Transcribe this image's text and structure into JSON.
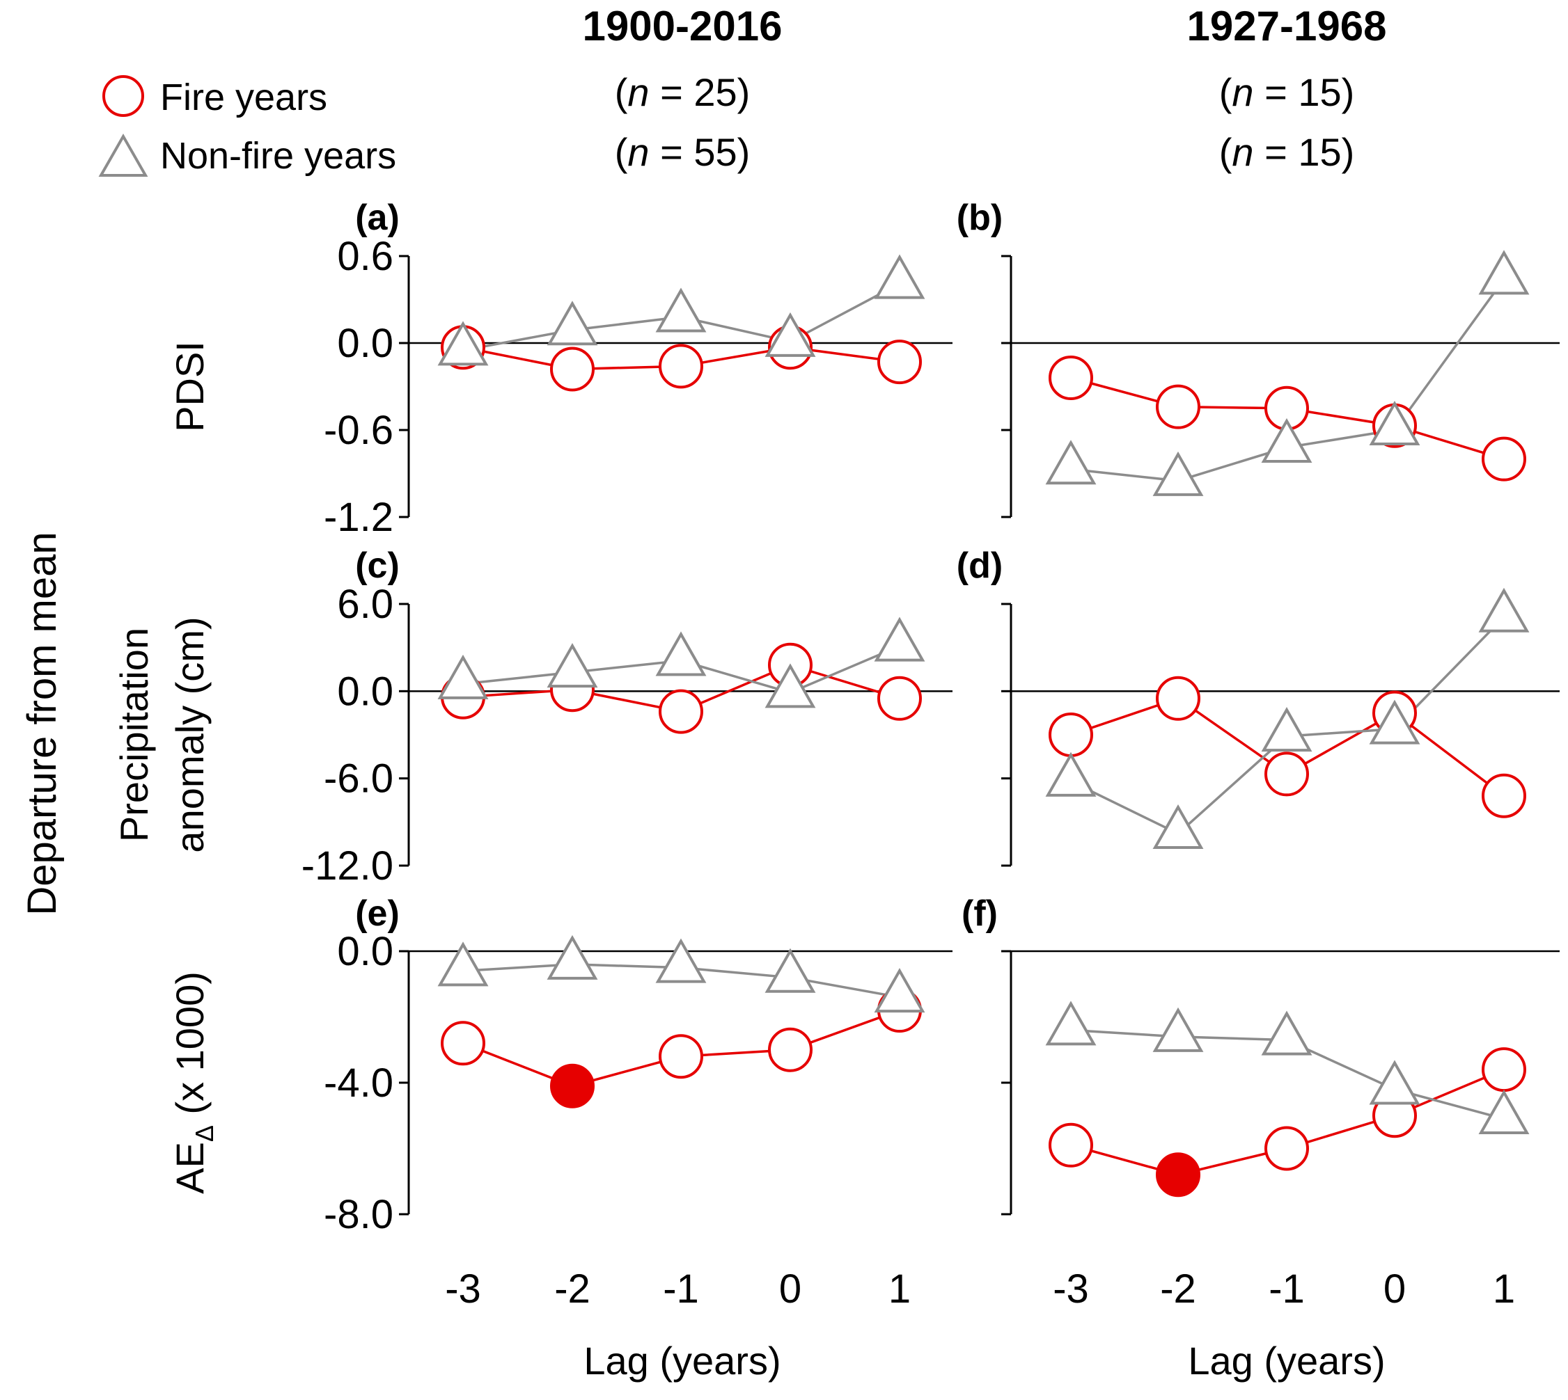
{
  "chart_data": {
    "type": "line",
    "columns": [
      {
        "title": "1900-2016",
        "n_fire": "25",
        "n_nonfire": "55"
      },
      {
        "title": "1927-1968",
        "n_fire": "15",
        "n_nonfire": "15"
      }
    ],
    "legend": {
      "fire": "Fire years",
      "nonfire": "Non-fire years"
    },
    "outer_ylabel": "Departure from mean",
    "xlabel": "Lag (years)",
    "x": [
      -3,
      -2,
      -1,
      0,
      1
    ],
    "x_tick_labels": [
      "-3",
      "-2",
      "-1",
      "0",
      "1"
    ],
    "colors": {
      "fire": "#e60000",
      "nonfire": "#8c8c8c",
      "axis": "#000000"
    },
    "rows": [
      {
        "ylabel": [
          "PDSI"
        ],
        "ylim": [
          -1.2,
          0.6
        ],
        "yticks": [
          0.6,
          0.0,
          -0.6,
          -1.2
        ],
        "ytick_labels": [
          "0.6",
          "0.0",
          "-0.6",
          "-1.2"
        ]
      },
      {
        "ylabel": [
          "Precipitation",
          "anomaly (cm)"
        ],
        "ylim": [
          -12.0,
          6.0
        ],
        "yticks": [
          6.0,
          0.0,
          -6.0,
          -12.0
        ],
        "ytick_labels": [
          "6.0",
          "0.0",
          "-6.0",
          "-12.0"
        ]
      },
      {
        "ylabel": [
          "AE",
          "Δ",
          " (x 1000)"
        ],
        "ylim": [
          -8.0,
          0.0
        ],
        "yticks": [
          0.0,
          -4.0,
          -8.0
        ],
        "ytick_labels": [
          "0.0",
          "-4.0",
          "-8.0"
        ]
      }
    ],
    "panels": [
      {
        "label": "(a)",
        "row": 0,
        "col": 0,
        "fire": [
          -0.03,
          -0.18,
          -0.16,
          -0.03,
          -0.13
        ],
        "fire_filled": [
          false,
          false,
          false,
          false,
          false
        ],
        "nonfire": [
          -0.05,
          0.09,
          0.18,
          0.01,
          0.41
        ]
      },
      {
        "label": "(b)",
        "row": 0,
        "col": 1,
        "fire": [
          -0.24,
          -0.44,
          -0.45,
          -0.57,
          -0.8
        ],
        "fire_filled": [
          false,
          false,
          false,
          false,
          false
        ],
        "nonfire": [
          -0.87,
          -0.95,
          -0.72,
          -0.6,
          0.44
        ]
      },
      {
        "label": "(c)",
        "row": 1,
        "col": 0,
        "fire": [
          -0.4,
          0.1,
          -1.4,
          1.8,
          -0.5
        ],
        "fire_filled": [
          false,
          false,
          false,
          false,
          false
        ],
        "nonfire": [
          0.5,
          1.3,
          2.1,
          -0.1,
          3.1
        ]
      },
      {
        "label": "(d)",
        "row": 1,
        "col": 1,
        "fire": [
          -3.0,
          -0.5,
          -5.7,
          -1.5,
          -7.2
        ],
        "fire_filled": [
          false,
          false,
          false,
          false,
          false
        ],
        "nonfire": [
          -6.2,
          -9.8,
          -3.1,
          -2.6,
          5.1
        ]
      },
      {
        "label": "(e)",
        "row": 2,
        "col": 0,
        "fire": [
          -2.8,
          -4.1,
          -3.2,
          -3.0,
          -1.8
        ],
        "fire_filled": [
          false,
          true,
          false,
          false,
          false
        ],
        "nonfire": [
          -0.6,
          -0.4,
          -0.5,
          -0.8,
          -1.4
        ]
      },
      {
        "label": "(f)",
        "row": 2,
        "col": 1,
        "fire": [
          -5.9,
          -6.8,
          -6.0,
          -5.0,
          -3.6
        ],
        "fire_filled": [
          false,
          true,
          false,
          false,
          false
        ],
        "nonfire": [
          -2.4,
          -2.6,
          -2.7,
          -4.2,
          -5.1
        ]
      }
    ]
  }
}
